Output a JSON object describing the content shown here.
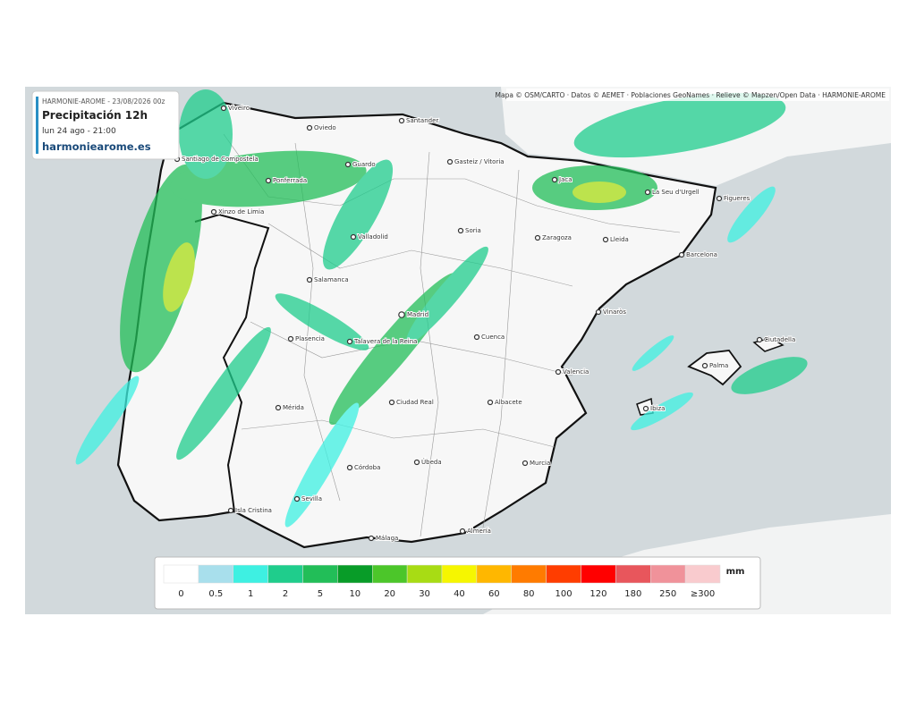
{
  "header": {
    "model_run": "HARMONIE-AROME - 23/08/2026 00z",
    "title": "Precipitación 12h",
    "valid_time": "lun 24 ago - 21:00",
    "site": "harmoniearome.es"
  },
  "attribution": "Mapa © OSM/CARTO · Datos © AEMET · Poblaciones GeoNames · Relieve © Mapzen/Open Data · HARMONIE-AROME",
  "cities": [
    "Viveiro",
    "Oviedo",
    "Santander",
    "Santiago de Compostela",
    "Guardo",
    "Gasteiz / Vitoria",
    "Jaca",
    "La Seu d'Urgell",
    "Figueres",
    "Ponferrada",
    "Xinzo de Limia",
    "Soria",
    "Zaragoza",
    "Lleida",
    "Valladolid",
    "Barcelona",
    "Salamanca",
    "Madrid",
    "Vinaròs",
    "Plasencia",
    "Talavera de la Reina",
    "Cuenca",
    "Ciutadella",
    "Palma",
    "Valencia",
    "Ciudad Real",
    "Albacete",
    "Mérida",
    "Ibiza",
    "Úbeda",
    "Murcia",
    "Córdoba",
    "Sevilla",
    "Isla Cristina",
    "Málaga",
    "Almería"
  ],
  "legend": {
    "unit": "mm",
    "items": [
      {
        "label": 0,
        "color": "#ffffff"
      },
      {
        "label": 0.5,
        "color": "#a8dfec"
      },
      {
        "label": 1,
        "color": "#3ef0e2"
      },
      {
        "label": 2,
        "color": "#1fcd8c"
      },
      {
        "label": 5,
        "color": "#22be58"
      },
      {
        "label": 10,
        "color": "#089c28"
      },
      {
        "label": 20,
        "color": "#4cc62a"
      },
      {
        "label": 30,
        "color": "#a8dc14"
      },
      {
        "label": 40,
        "color": "#f6f600"
      },
      {
        "label": 60,
        "color": "#ffb700"
      },
      {
        "label": 80,
        "color": "#ff7b00"
      },
      {
        "label": 100,
        "color": "#ff3d00"
      },
      {
        "label": 120,
        "color": "#ff0000"
      },
      {
        "label": 180,
        "color": "#e8565c"
      },
      {
        "label": 250,
        "color": "#f0929a"
      },
      {
        "label": "≥300",
        "color": "#f9cbce"
      }
    ]
  }
}
